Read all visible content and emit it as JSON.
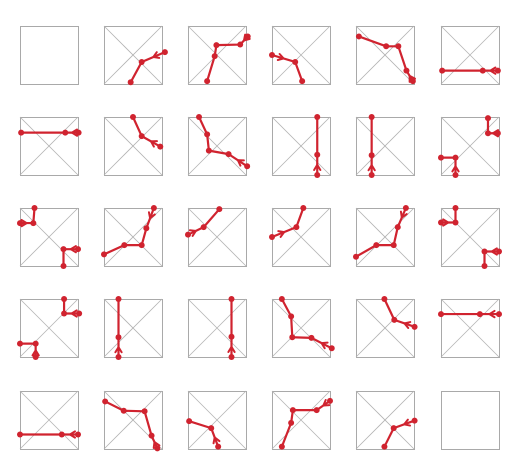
{
  "colors": {
    "tile_border": "#a9a9a9",
    "diagonal": "#b3b3b3",
    "path": "#d0232f"
  },
  "grid": {
    "rows": 5,
    "cols": 6
  },
  "tiles": [
    {
      "id": "r1c1",
      "paths": []
    },
    {
      "id": "r1c2",
      "paths": [
        [
          [
            0.46,
            0.97
          ],
          [
            0.65,
            0.62
          ],
          [
            1.05,
            0.45
          ]
        ]
      ]
    },
    {
      "id": "r1c3",
      "paths": [
        [
          [
            0.33,
            0.95
          ],
          [
            0.46,
            0.52
          ],
          [
            0.49,
            0.33
          ],
          [
            0.9,
            0.32
          ],
          [
            1.03,
            0.18
          ]
        ]
      ]
    },
    {
      "id": "r1c4",
      "paths": [
        [
          [
            0.52,
            0.95
          ],
          [
            0.4,
            0.62
          ],
          [
            0.0,
            0.5
          ]
        ]
      ]
    },
    {
      "id": "r1c5",
      "paths": [
        [
          [
            0.05,
            0.18
          ],
          [
            0.52,
            0.35
          ],
          [
            0.73,
            0.35
          ],
          [
            0.87,
            0.77
          ],
          [
            0.98,
            0.95
          ]
        ]
      ]
    },
    {
      "id": "r1c6",
      "paths": [
        [
          [
            0.02,
            0.77
          ],
          [
            0.72,
            0.77
          ],
          [
            0.98,
            0.77
          ]
        ]
      ]
    },
    {
      "id": "r2c1",
      "paths": [
        [
          [
            0.02,
            0.27
          ],
          [
            0.78,
            0.27
          ],
          [
            1.01,
            0.27
          ]
        ]
      ]
    },
    {
      "id": "r2c2",
      "paths": [
        [
          [
            0.5,
            0.0
          ],
          [
            0.65,
            0.33
          ],
          [
            0.97,
            0.51
          ]
        ]
      ]
    },
    {
      "id": "r2c3",
      "paths": [
        [
          [
            0.19,
            0.0
          ],
          [
            0.33,
            0.3
          ],
          [
            0.36,
            0.58
          ],
          [
            0.7,
            0.64
          ],
          [
            1.02,
            0.85
          ]
        ]
      ]
    },
    {
      "id": "r2c4",
      "paths": [
        [
          [
            0.78,
            0.0
          ],
          [
            0.78,
            0.65
          ],
          [
            0.78,
            1.0
          ]
        ]
      ]
    },
    {
      "id": "r2c5",
      "paths": [
        [
          [
            0.27,
            0.0
          ],
          [
            0.27,
            0.66
          ],
          [
            0.27,
            1.0
          ]
        ]
      ]
    },
    {
      "id": "r2c6",
      "paths": [
        [
          [
            0.81,
            0.02
          ],
          [
            0.81,
            0.28
          ],
          [
            0.98,
            0.28
          ]
        ],
        [
          [
            0.0,
            0.7
          ],
          [
            0.25,
            0.7
          ],
          [
            0.25,
            1.0
          ]
        ]
      ]
    },
    {
      "id": "r3c1",
      "paths": [
        [
          [
            0.25,
            0.0
          ],
          [
            0.23,
            0.26
          ],
          [
            0.0,
            0.26
          ]
        ],
        [
          [
            0.75,
            1.0
          ],
          [
            0.75,
            0.71
          ],
          [
            1.0,
            0.71
          ]
        ]
      ]
    },
    {
      "id": "r3c2",
      "paths": [
        [
          [
            0.0,
            0.8
          ],
          [
            0.35,
            0.64
          ],
          [
            0.65,
            0.64
          ],
          [
            0.73,
            0.35
          ],
          [
            0.86,
            0.0
          ]
        ]
      ]
    },
    {
      "id": "r3c3",
      "paths": [
        [
          [
            0.54,
            0.02
          ],
          [
            0.27,
            0.33
          ],
          [
            0.0,
            0.46
          ]
        ]
      ]
    },
    {
      "id": "r3c4",
      "paths": [
        [
          [
            0.54,
            0.0
          ],
          [
            0.42,
            0.33
          ],
          [
            0.0,
            0.5
          ]
        ]
      ]
    },
    {
      "id": "r3c5",
      "paths": [
        [
          [
            0.0,
            0.84
          ],
          [
            0.35,
            0.64
          ],
          [
            0.65,
            0.64
          ],
          [
            0.72,
            0.33
          ],
          [
            0.86,
            0.0
          ]
        ]
      ]
    },
    {
      "id": "r3c6",
      "paths": [
        [
          [
            0.25,
            0.0
          ],
          [
            0.25,
            0.25
          ],
          [
            0.0,
            0.25
          ]
        ],
        [
          [
            0.75,
            1.0
          ],
          [
            0.75,
            0.75
          ],
          [
            1.0,
            0.75
          ]
        ]
      ]
    },
    {
      "id": "r4c1",
      "paths": [
        [
          [
            0.76,
            0.0
          ],
          [
            0.76,
            0.25
          ],
          [
            1.02,
            0.25
          ]
        ],
        [
          [
            0.0,
            0.77
          ],
          [
            0.27,
            0.77
          ],
          [
            0.27,
            1.0
          ]
        ]
      ]
    },
    {
      "id": "r4c2",
      "paths": [
        [
          [
            0.25,
            0.0
          ],
          [
            0.25,
            0.66
          ],
          [
            0.25,
            1.0
          ]
        ]
      ]
    },
    {
      "id": "r4c3",
      "paths": [
        [
          [
            0.75,
            0.0
          ],
          [
            0.75,
            0.65
          ],
          [
            0.75,
            1.0
          ]
        ]
      ]
    },
    {
      "id": "r4c4",
      "paths": [
        [
          [
            0.17,
            0.0
          ],
          [
            0.33,
            0.3
          ],
          [
            0.35,
            0.66
          ],
          [
            0.68,
            0.67
          ],
          [
            1.03,
            0.85
          ]
        ]
      ]
    },
    {
      "id": "r4c5",
      "paths": [
        [
          [
            0.49,
            0.0
          ],
          [
            0.66,
            0.36
          ],
          [
            1.01,
            0.48
          ]
        ]
      ]
    },
    {
      "id": "r4c6",
      "paths": [
        [
          [
            0.0,
            0.26
          ],
          [
            0.67,
            0.26
          ],
          [
            1.0,
            0.26
          ]
        ]
      ]
    },
    {
      "id": "r5c1",
      "paths": [
        [
          [
            0.0,
            0.75
          ],
          [
            0.72,
            0.75
          ],
          [
            1.0,
            0.75
          ]
        ]
      ]
    },
    {
      "id": "r5c2",
      "paths": [
        [
          [
            0.02,
            0.18
          ],
          [
            0.34,
            0.34
          ],
          [
            0.7,
            0.35
          ],
          [
            0.82,
            0.77
          ],
          [
            0.92,
            0.99
          ]
        ]
      ]
    },
    {
      "id": "r5c3",
      "paths": [
        [
          [
            0.02,
            0.52
          ],
          [
            0.4,
            0.64
          ],
          [
            0.52,
            0.96
          ]
        ]
      ]
    },
    {
      "id": "r5c4",
      "paths": [
        [
          [
            0.17,
            0.96
          ],
          [
            0.33,
            0.55
          ],
          [
            0.36,
            0.33
          ],
          [
            0.77,
            0.33
          ],
          [
            1.0,
            0.17
          ]
        ]
      ]
    },
    {
      "id": "r5c5",
      "paths": [
        [
          [
            0.49,
            0.96
          ],
          [
            0.65,
            0.64
          ],
          [
            1.01,
            0.51
          ]
        ]
      ]
    },
    {
      "id": "r5c6",
      "paths": []
    }
  ]
}
